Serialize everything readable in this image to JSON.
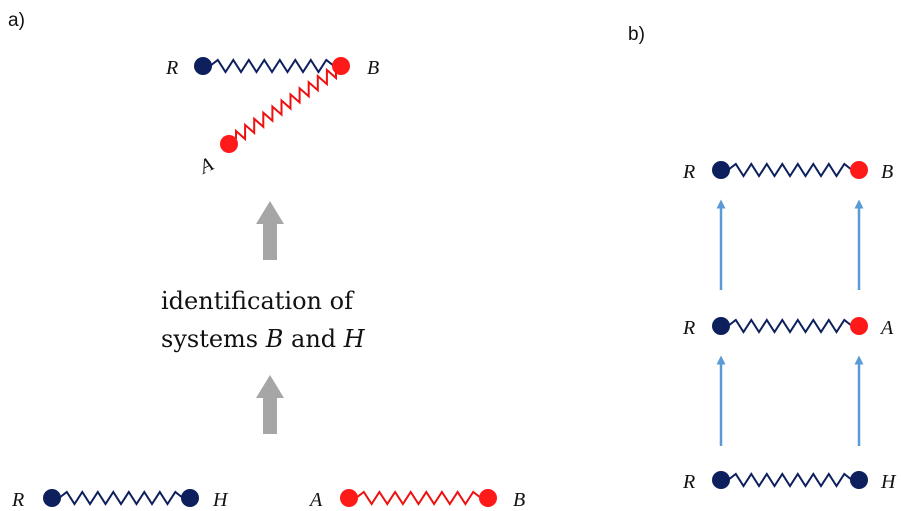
{
  "colors": {
    "navy": "#0d1f5c",
    "red": "#ff1a1a",
    "zigzag_red": "#ee1111",
    "gray_arrow": "#a6a6a6",
    "blue_arrow": "#5b9bd5"
  },
  "panel_a": {
    "label": "a)",
    "top_system": {
      "left_label": "R",
      "right_label": "B",
      "bottom_label": "A"
    },
    "caption": {
      "line1": "identification of",
      "line2_prefix": "systems ",
      "var1": "B",
      "connector": " and ",
      "var2": "H"
    },
    "bottom_left_system": {
      "left_label": "R",
      "right_label": "H"
    },
    "bottom_right_system": {
      "left_label": "A",
      "right_label": "B"
    }
  },
  "panel_b": {
    "label": "b)",
    "rows": [
      {
        "left_label": "R",
        "right_label": "B"
      },
      {
        "left_label": "R",
        "right_label": "A"
      },
      {
        "left_label": "R",
        "right_label": "H"
      }
    ]
  }
}
